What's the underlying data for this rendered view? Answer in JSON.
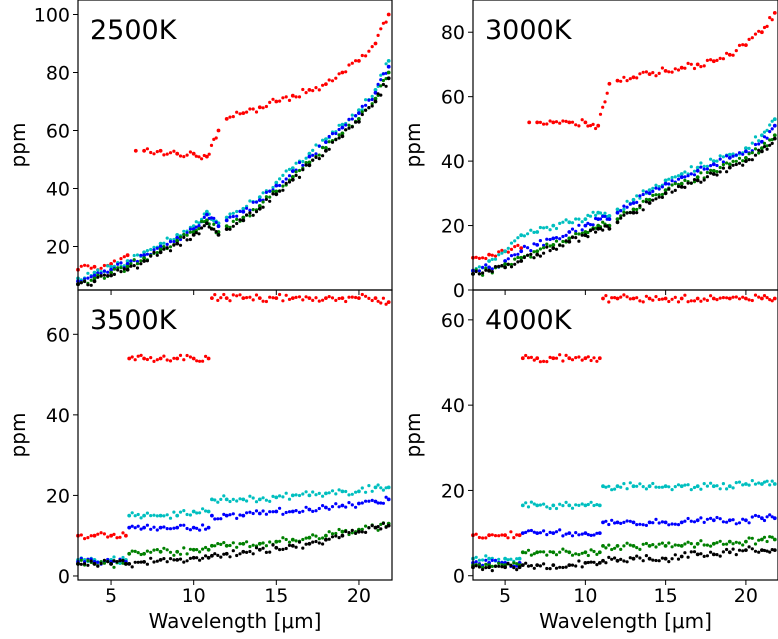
{
  "figure": {
    "xlabel": "Wavelength [μm]",
    "ylabel": "ppm"
  },
  "chart_data": [
    {
      "type": "scatter",
      "title": "2500K",
      "xlabel": "",
      "ylabel": "ppm",
      "xlim": [
        3,
        22
      ],
      "ylim": [
        5,
        105
      ],
      "yticks": [
        20,
        40,
        60,
        80,
        100
      ],
      "grid": false,
      "series": [
        {
          "color": "#ff0000",
          "x": [
            3,
            4,
            5,
            6,
            6.5,
            7,
            8,
            9,
            10,
            10.8,
            11.5,
            12,
            13,
            14,
            15,
            16,
            17,
            18,
            19,
            20,
            21,
            21.8
          ],
          "y": [
            12,
            13,
            14,
            17,
            53,
            53,
            53,
            52,
            52,
            51,
            60,
            64,
            66,
            68,
            70,
            72,
            74,
            76,
            80,
            84,
            90,
            100
          ]
        },
        {
          "color": "#00bfbf",
          "x": [
            3,
            4,
            5,
            6,
            7,
            8,
            9,
            10,
            10.8,
            11.5,
            12,
            13,
            14,
            15,
            16,
            17,
            18,
            19,
            20,
            21,
            21.8
          ],
          "y": [
            9,
            11,
            13,
            15,
            18,
            21,
            24,
            27,
            32,
            28,
            30,
            33,
            37,
            42,
            47,
            52,
            57,
            62,
            67,
            74,
            84
          ]
        },
        {
          "color": "#0000ff",
          "x": [
            3,
            4,
            5,
            6,
            7,
            8,
            9,
            10,
            10.8,
            11.5,
            12,
            13,
            14,
            15,
            16,
            17,
            18,
            19,
            20,
            21,
            21.8
          ],
          "y": [
            8,
            10,
            12,
            14,
            17,
            20,
            23,
            26,
            31,
            27,
            29,
            32,
            36,
            41,
            46,
            51,
            56,
            61,
            66,
            73,
            82
          ]
        },
        {
          "color": "#008000",
          "x": [
            3,
            4,
            5,
            6,
            7,
            8,
            9,
            10,
            10.8,
            11.5,
            12,
            13,
            14,
            15,
            16,
            17,
            18,
            19,
            20,
            21,
            21.8
          ],
          "y": [
            7,
            9,
            11,
            13,
            16,
            19,
            22,
            25,
            29,
            25,
            27,
            30,
            34,
            39,
            44,
            49,
            54,
            59,
            64,
            71,
            80
          ]
        },
        {
          "color": "#000000",
          "x": [
            3,
            4,
            5,
            6,
            7,
            8,
            9,
            10,
            10.8,
            11.5,
            12,
            13,
            14,
            15,
            16,
            17,
            18,
            19,
            20,
            21,
            21.8
          ],
          "y": [
            7,
            8,
            10,
            12,
            15,
            18,
            21,
            24,
            28,
            24,
            26,
            29,
            33,
            38,
            43,
            48,
            53,
            58,
            63,
            70,
            78
          ]
        }
      ]
    },
    {
      "type": "scatter",
      "title": "3000K",
      "xlabel": "",
      "ylabel": "ppm",
      "xlim": [
        3,
        22
      ],
      "ylim": [
        0,
        90
      ],
      "yticks": [
        0,
        20,
        40,
        60,
        80
      ],
      "grid": false,
      "series": [
        {
          "color": "#ff0000",
          "x": [
            3,
            4,
            5,
            6,
            6.5,
            7,
            8,
            9,
            10,
            10.8,
            11.5,
            12,
            13,
            14,
            15,
            16,
            17,
            18,
            19,
            20,
            21,
            21.8
          ],
          "y": [
            10,
            11,
            12,
            13,
            52,
            52,
            52,
            52,
            52,
            51,
            64,
            65,
            66,
            67,
            68,
            69,
            70,
            71,
            73,
            76,
            80,
            86
          ]
        },
        {
          "color": "#00bfbf",
          "x": [
            3,
            4,
            5,
            6,
            7,
            8,
            9,
            10,
            10.8,
            11.5,
            12,
            13,
            14,
            15,
            16,
            17,
            18,
            19,
            20,
            21,
            21.8
          ],
          "y": [
            6,
            9,
            12,
            17,
            18,
            20,
            21,
            22,
            24,
            23,
            25,
            28,
            31,
            34,
            36,
            38,
            40,
            42,
            44,
            48,
            53
          ]
        },
        {
          "color": "#0000ff",
          "x": [
            3,
            4,
            5,
            6,
            7,
            8,
            9,
            10,
            10.8,
            11.5,
            12,
            13,
            14,
            15,
            16,
            17,
            18,
            19,
            20,
            21,
            21.8
          ],
          "y": [
            6,
            7,
            9,
            12,
            14,
            16,
            18,
            20,
            22,
            22,
            24,
            27,
            30,
            33,
            35,
            37,
            39,
            41,
            43,
            46,
            51
          ]
        },
        {
          "color": "#008000",
          "x": [
            3,
            4,
            5,
            6,
            7,
            8,
            9,
            10,
            10.8,
            11.5,
            12,
            13,
            14,
            15,
            16,
            17,
            18,
            19,
            20,
            21,
            21.8
          ],
          "y": [
            5,
            6,
            8,
            10,
            12,
            14,
            16,
            18,
            20,
            20,
            22,
            25,
            28,
            31,
            33,
            35,
            37,
            39,
            41,
            44,
            48
          ]
        },
        {
          "color": "#000000",
          "x": [
            3,
            4,
            5,
            6,
            7,
            8,
            9,
            10,
            10.8,
            11.5,
            12,
            13,
            14,
            15,
            16,
            17,
            18,
            19,
            20,
            21,
            21.8
          ],
          "y": [
            5,
            6,
            7,
            9,
            11,
            13,
            15,
            17,
            19,
            19,
            21,
            24,
            27,
            30,
            32,
            34,
            36,
            38,
            40,
            43,
            47
          ]
        }
      ]
    },
    {
      "type": "scatter",
      "title": "3500K",
      "xlabel": "Wavelength [μm]",
      "ylabel": "ppm",
      "xlim": [
        3,
        22
      ],
      "ylim": [
        -1,
        71
      ],
      "yticks": [
        0,
        20,
        40,
        60
      ],
      "xticks": [
        5,
        10,
        15,
        20
      ],
      "grid": false,
      "series": [
        {
          "color": "#ff0000",
          "x": [
            3,
            4,
            5,
            5.9,
            6.1,
            7,
            8,
            9,
            10,
            10.9,
            11.1,
            12,
            13,
            14,
            15,
            16,
            17,
            18,
            19,
            20,
            21,
            21.8
          ],
          "y": [
            10,
            10,
            10,
            10,
            54,
            54,
            54,
            54,
            54,
            54,
            69,
            69,
            69,
            69,
            69,
            69,
            69,
            69,
            69,
            69,
            69,
            68
          ]
        },
        {
          "color": "#00bfbf",
          "x": [
            3,
            4,
            5,
            5.9,
            6.1,
            7,
            8,
            9,
            10,
            10.9,
            11.1,
            12,
            13,
            14,
            15,
            16,
            17,
            18,
            19,
            20,
            21,
            21.8
          ],
          "y": [
            4,
            4,
            4,
            4,
            15,
            15,
            15,
            15,
            16,
            16,
            19,
            19,
            19,
            19,
            19.5,
            20,
            20,
            20.5,
            21,
            21,
            22,
            22
          ]
        },
        {
          "color": "#0000ff",
          "x": [
            3,
            4,
            5,
            5.9,
            6.1,
            7,
            8,
            9,
            10,
            10.9,
            11.1,
            12,
            13,
            14,
            15,
            16,
            17,
            18,
            19,
            20,
            21,
            21.8
          ],
          "y": [
            3.5,
            3.5,
            3.5,
            3.5,
            12,
            12,
            12,
            12,
            12,
            12,
            15,
            15,
            15,
            15.5,
            16,
            16,
            16.5,
            17,
            17.5,
            18,
            18.5,
            19
          ]
        },
        {
          "color": "#008000",
          "x": [
            3,
            4,
            5,
            5.9,
            6.1,
            7,
            8,
            9,
            10,
            10.9,
            11.1,
            12,
            13,
            14,
            15,
            16,
            17,
            18,
            19,
            20,
            21,
            21.8
          ],
          "y": [
            3,
            3,
            3,
            3,
            5.5,
            5.5,
            6,
            6,
            6.5,
            6.5,
            7.5,
            7.5,
            8,
            8,
            8.5,
            9,
            9.5,
            10,
            11,
            11.5,
            12,
            13
          ]
        },
        {
          "color": "#000000",
          "x": [
            3,
            4,
            5,
            5.9,
            6.1,
            7,
            8,
            9,
            10,
            10.9,
            11.1,
            12,
            13,
            14,
            15,
            16,
            17,
            18,
            19,
            20,
            21,
            21.8
          ],
          "y": [
            3,
            3,
            3,
            3,
            3,
            3.5,
            4,
            4,
            4.5,
            4.5,
            5,
            5.5,
            6,
            6.5,
            7,
            7.5,
            8,
            9,
            10,
            11,
            12,
            12.5
          ]
        }
      ]
    },
    {
      "type": "scatter",
      "title": "4000K",
      "xlabel": "Wavelength [μm]",
      "ylabel": "ppm",
      "xlim": [
        3,
        22
      ],
      "ylim": [
        -1,
        67
      ],
      "yticks": [
        0,
        20,
        40,
        60
      ],
      "xticks": [
        5,
        10,
        15,
        20
      ],
      "grid": false,
      "series": [
        {
          "color": "#ff0000",
          "x": [
            3,
            4,
            5,
            5.9,
            6.1,
            7,
            8,
            9,
            10,
            10.9,
            11.1,
            12,
            13,
            14,
            15,
            16,
            17,
            18,
            19,
            20,
            21,
            21.8
          ],
          "y": [
            9.5,
            9.5,
            9.5,
            9.5,
            51,
            51,
            51,
            51,
            51,
            51,
            65,
            65,
            65,
            65,
            65,
            65,
            65,
            65,
            65,
            65,
            65,
            65
          ]
        },
        {
          "color": "#00bfbf",
          "x": [
            3,
            4,
            5,
            5.9,
            6.1,
            7,
            8,
            9,
            10,
            10.9,
            11.1,
            12,
            13,
            14,
            15,
            16,
            17,
            18,
            19,
            20,
            21,
            21.8
          ],
          "y": [
            4,
            4,
            4,
            4,
            16.5,
            16.5,
            16.5,
            16.5,
            16.5,
            16.5,
            21,
            21,
            21,
            21,
            21,
            21,
            21,
            21,
            21,
            21.5,
            21.5,
            21.5
          ]
        },
        {
          "color": "#0000ff",
          "x": [
            3,
            4,
            5,
            5.9,
            6.1,
            7,
            8,
            9,
            10,
            10.9,
            11.1,
            12,
            13,
            14,
            15,
            16,
            17,
            18,
            19,
            20,
            21,
            21.8
          ],
          "y": [
            3,
            3,
            3,
            3,
            10,
            10,
            10,
            10,
            10,
            10,
            12.5,
            12.5,
            12.5,
            12.5,
            12.5,
            12.5,
            13,
            13,
            13,
            13,
            13.5,
            13.5
          ]
        },
        {
          "color": "#008000",
          "x": [
            3,
            4,
            5,
            5.9,
            6.1,
            7,
            8,
            9,
            10,
            10.9,
            11.1,
            12,
            13,
            14,
            15,
            16,
            17,
            18,
            19,
            20,
            21,
            21.8
          ],
          "y": [
            2.5,
            2.5,
            2.5,
            2.5,
            5.5,
            5.5,
            5.5,
            5.5,
            5.5,
            5.5,
            7,
            7,
            7,
            7,
            7,
            7,
            7.5,
            7.5,
            8,
            8,
            8.5,
            8.5
          ]
        },
        {
          "color": "#000000",
          "x": [
            3,
            4,
            5,
            5.9,
            6.1,
            7,
            8,
            9,
            10,
            10.9,
            11.1,
            12,
            13,
            14,
            15,
            16,
            17,
            18,
            19,
            20,
            21,
            21.8
          ],
          "y": [
            2,
            2,
            2,
            2,
            2.5,
            2.5,
            2.5,
            2.5,
            3,
            3,
            3.5,
            3.5,
            4,
            4,
            4,
            4.5,
            5,
            5,
            5.5,
            6,
            6,
            6
          ]
        }
      ]
    }
  ]
}
